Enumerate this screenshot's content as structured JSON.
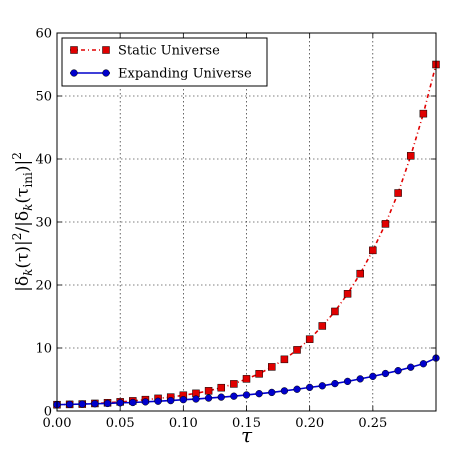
{
  "chart_data": {
    "type": "line",
    "xlabel": "τ",
    "ylabel": "|δk(τ)|²/|δk(τini)|²",
    "ylabel_parts": {
      "open": "|δ",
      "sub1": "k",
      "mid": "(τ)|",
      "sup1": "2",
      "div": "/|δ",
      "sub2": "k",
      "mid2": "(τ",
      "sub3": "ini",
      "close": ")|",
      "sup2": "2"
    },
    "xlim": [
      0.0,
      0.3
    ],
    "ylim": [
      0,
      60
    ],
    "xticks": [
      0.0,
      0.05,
      0.1,
      0.15,
      0.2,
      0.25
    ],
    "xtick_labels": [
      "0.00",
      "0.05",
      "0.10",
      "0.15",
      "0.20",
      "0.25"
    ],
    "yticks": [
      0,
      10,
      20,
      30,
      40,
      50,
      60
    ],
    "ytick_labels": [
      "0",
      "10",
      "20",
      "30",
      "40",
      "50",
      "60"
    ],
    "grid": true,
    "legend_position": "top-left",
    "series": [
      {
        "name": "Static Universe",
        "color": "#e00000",
        "marker": "square",
        "line_style": "dash-dot",
        "x": [
          0.0,
          0.01,
          0.02,
          0.03,
          0.04,
          0.05,
          0.06,
          0.07,
          0.08,
          0.09,
          0.1,
          0.11,
          0.12,
          0.13,
          0.14,
          0.15,
          0.16,
          0.17,
          0.18,
          0.19,
          0.2,
          0.21,
          0.22,
          0.23,
          0.24,
          0.25,
          0.26,
          0.27,
          0.28,
          0.29,
          0.3
        ],
        "y": [
          1.0,
          1.05,
          1.1,
          1.2,
          1.3,
          1.45,
          1.6,
          1.8,
          2.0,
          2.2,
          2.5,
          2.8,
          3.2,
          3.7,
          4.3,
          5.1,
          5.9,
          7.0,
          8.2,
          9.7,
          11.4,
          13.5,
          15.8,
          18.6,
          21.8,
          25.5,
          29.7,
          34.6,
          40.5,
          47.2,
          55.0
        ]
      },
      {
        "name": "Expanding Universe",
        "color": "#0000cc",
        "marker": "circle",
        "line_style": "solid",
        "x": [
          0.0,
          0.01,
          0.02,
          0.03,
          0.04,
          0.05,
          0.06,
          0.07,
          0.08,
          0.09,
          0.1,
          0.11,
          0.12,
          0.13,
          0.14,
          0.15,
          0.16,
          0.17,
          0.18,
          0.19,
          0.2,
          0.21,
          0.22,
          0.23,
          0.24,
          0.25,
          0.26,
          0.27,
          0.28,
          0.29,
          0.3
        ],
        "y": [
          1.0,
          1.05,
          1.1,
          1.15,
          1.2,
          1.3,
          1.35,
          1.45,
          1.55,
          1.65,
          1.8,
          1.9,
          2.05,
          2.2,
          2.35,
          2.55,
          2.75,
          2.95,
          3.2,
          3.45,
          3.75,
          4.0,
          4.35,
          4.7,
          5.1,
          5.5,
          5.95,
          6.4,
          6.95,
          7.5,
          8.4
        ]
      }
    ]
  }
}
